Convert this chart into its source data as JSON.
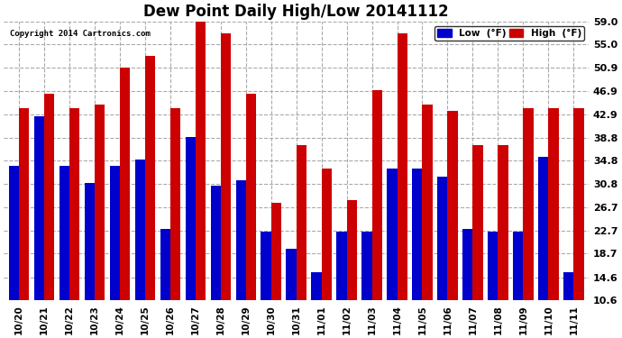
{
  "title": "Dew Point Daily High/Low 20141112",
  "copyright": "Copyright 2014 Cartronics.com",
  "background_color": "#ffffff",
  "plot_bg_color": "#ffffff",
  "grid_color": "#aaaaaa",
  "bar_width": 0.4,
  "low_color": "#0000cc",
  "high_color": "#cc0000",
  "categories": [
    "10/20",
    "10/21",
    "10/22",
    "10/23",
    "10/24",
    "10/25",
    "10/26",
    "10/27",
    "10/28",
    "10/29",
    "10/30",
    "10/31",
    "11/01",
    "11/02",
    "11/03",
    "11/04",
    "11/05",
    "11/06",
    "11/07",
    "11/08",
    "11/09",
    "11/10",
    "11/11"
  ],
  "low_values": [
    34.0,
    42.5,
    34.0,
    31.0,
    34.0,
    35.0,
    23.0,
    39.0,
    30.5,
    31.5,
    22.5,
    19.5,
    15.5,
    22.5,
    22.5,
    33.5,
    33.5,
    32.0,
    23.0,
    22.5,
    22.5,
    35.5,
    15.5
  ],
  "high_values": [
    44.0,
    46.5,
    44.0,
    44.5,
    51.0,
    53.0,
    44.0,
    60.0,
    57.0,
    46.5,
    27.5,
    37.5,
    33.5,
    28.0,
    47.0,
    57.0,
    44.5,
    43.5,
    37.5,
    37.5,
    44.0,
    44.0,
    44.0
  ],
  "yticks": [
    10.6,
    14.6,
    18.7,
    22.7,
    26.7,
    30.8,
    34.8,
    38.8,
    42.9,
    46.9,
    50.9,
    55.0,
    59.0
  ],
  "ymin": 10.6,
  "ymax": 59.0,
  "legend_low_label": "Low  (°F)",
  "legend_high_label": "High  (°F)"
}
